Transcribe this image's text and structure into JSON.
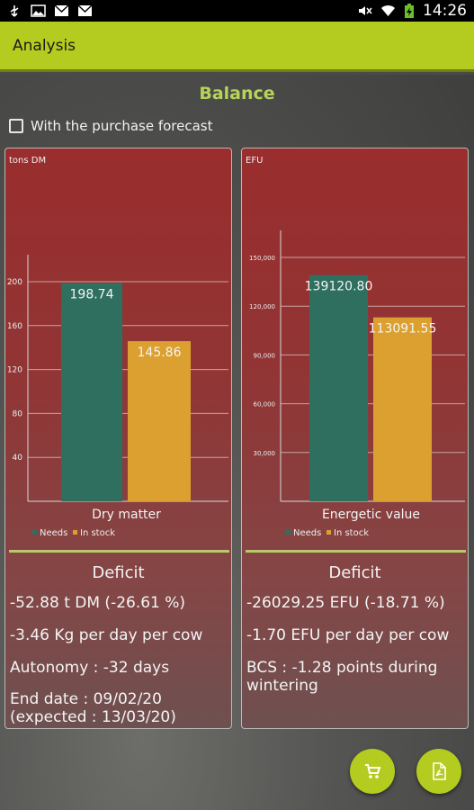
{
  "statusbar": {
    "time": "14:26",
    "left_icons": [
      "usb-icon",
      "image-icon",
      "mail-icon",
      "mail-icon"
    ],
    "right_icons": [
      "mute-icon",
      "wifi-icon",
      "battery-charging-icon"
    ]
  },
  "appbar": {
    "title": "Analysis",
    "color": "#b3cc1f"
  },
  "main": {
    "title": "Balance",
    "purchase_forecast": {
      "label": "With the purchase forecast",
      "checked": false
    }
  },
  "legend": {
    "needs": "Needs",
    "in_stock": "In stock"
  },
  "colors": {
    "needs": "#2e6f60",
    "in_stock": "#dba030",
    "accent": "#b3cc1f",
    "title": "#b6d35a"
  },
  "panels": {
    "dry_matter": {
      "deficit_title": "Deficit",
      "stats": [
        "-52.88 t DM (-26.61 %)",
        "-3.46 Kg per day per cow",
        "Autonomy : -32 days",
        "End date : 09/02/20 (expected : 13/03/20)"
      ]
    },
    "energetic": {
      "deficit_title": "Deficit",
      "stats": [
        "-26029.25 EFU (-18.71 %)",
        "-1.70 EFU per day per cow",
        "BCS : -1.28 points during wintering"
      ]
    }
  },
  "chart_data": [
    {
      "type": "bar",
      "ylabel": "tons DM",
      "categories": [
        "Dry matter"
      ],
      "ylim": [
        0,
        200
      ],
      "yticks": [
        40,
        80,
        120,
        160,
        200
      ],
      "ytick_labels": [
        "40",
        "80",
        "120",
        "160",
        "200"
      ],
      "series": [
        {
          "name": "Needs",
          "values": [
            198.74
          ],
          "labels": [
            "198.74"
          ]
        },
        {
          "name": "In stock",
          "values": [
            145.86
          ],
          "labels": [
            "145.86"
          ]
        }
      ]
    },
    {
      "type": "bar",
      "ylabel": "EFU",
      "categories": [
        "Energetic value"
      ],
      "ylim": [
        0,
        150000
      ],
      "yticks": [
        30000,
        60000,
        90000,
        120000,
        150000
      ],
      "ytick_labels": [
        "30,000",
        "60,000",
        "90,000",
        "120,000",
        "150,000"
      ],
      "series": [
        {
          "name": "Needs",
          "values": [
            139120.8
          ],
          "labels": [
            "139120.80"
          ]
        },
        {
          "name": "In stock",
          "values": [
            113091.55
          ],
          "labels": [
            "113091.55"
          ]
        }
      ]
    }
  ],
  "fabs": {
    "cart_icon": "cart-icon",
    "pdf_icon": "pdf-icon"
  }
}
